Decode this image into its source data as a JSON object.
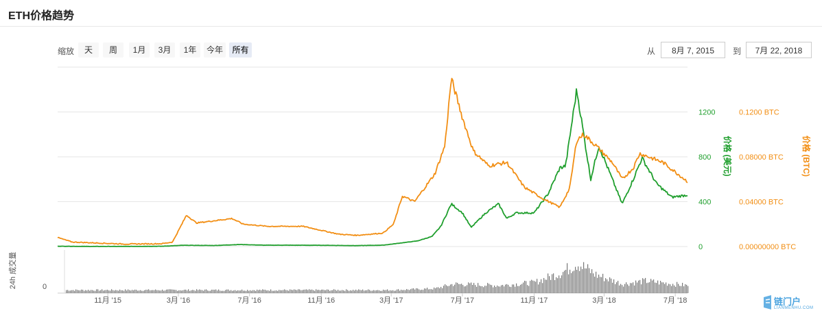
{
  "header": {
    "title": "ETH价格趋势"
  },
  "toolbar": {
    "zoom_label": "缩放",
    "zoom_buttons": [
      "天",
      "周",
      "1月",
      "3月",
      "1年",
      "今年",
      "所有"
    ],
    "active_zoom": "所有",
    "from_label": "从",
    "from_value": "8月 7, 2015",
    "to_label": "到",
    "to_value": "7月 22, 2018"
  },
  "watermark": {
    "text": "链门户",
    "sub": "LIANMENHU.COM"
  },
  "colors": {
    "usd": "#1e9e2c",
    "btc": "#f28e13",
    "volume": "#777777",
    "grid": "#e6e6e6"
  },
  "chart_data": {
    "type": "line",
    "x_axis": {
      "ticks": [
        "11月 '15",
        "3月 '16",
        "7月 '16",
        "11月 '16",
        "3月 '17",
        "7月 '17",
        "11月 '17",
        "3月 '18",
        "7月 '18"
      ]
    },
    "y_axes": {
      "usd": {
        "label": "价格 (美元)",
        "ticks": [
          "0",
          "400",
          "800",
          "1200"
        ],
        "range": [
          0,
          1600
        ]
      },
      "btc": {
        "label": "价格 (BTC)",
        "ticks": [
          "0.00000000 BTC",
          "0.04000 BTC",
          "0.08000 BTC",
          "0.1200 BTC"
        ],
        "range": [
          0,
          0.16
        ]
      },
      "volume": {
        "label": "24h 成交量",
        "ticks": [
          "0"
        ]
      }
    },
    "series": [
      {
        "name": "价格 (美元)",
        "axis": "usd",
        "points": [
          [
            "2015-08-07",
            2.8
          ],
          [
            "2015-10-01",
            0.7
          ],
          [
            "2015-12-01",
            0.9
          ],
          [
            "2016-02-01",
            2.3
          ],
          [
            "2016-03-10",
            11
          ],
          [
            "2016-05-01",
            9
          ],
          [
            "2016-06-15",
            18
          ],
          [
            "2016-07-25",
            12
          ],
          [
            "2016-09-01",
            12
          ],
          [
            "2016-11-01",
            11
          ],
          [
            "2017-01-01",
            8
          ],
          [
            "2017-02-15",
            12
          ],
          [
            "2017-03-15",
            30
          ],
          [
            "2017-04-15",
            50
          ],
          [
            "2017-05-10",
            90
          ],
          [
            "2017-05-25",
            180
          ],
          [
            "2017-06-12",
            380
          ],
          [
            "2017-07-01",
            300
          ],
          [
            "2017-07-16",
            170
          ],
          [
            "2017-08-10",
            300
          ],
          [
            "2017-09-01",
            380
          ],
          [
            "2017-09-15",
            250
          ],
          [
            "2017-10-01",
            300
          ],
          [
            "2017-11-01",
            300
          ],
          [
            "2017-11-25",
            470
          ],
          [
            "2017-12-15",
            700
          ],
          [
            "2017-12-25",
            720
          ],
          [
            "2018-01-13",
            1400
          ],
          [
            "2018-02-06",
            600
          ],
          [
            "2018-02-20",
            900
          ],
          [
            "2018-03-15",
            600
          ],
          [
            "2018-04-01",
            380
          ],
          [
            "2018-04-20",
            600
          ],
          [
            "2018-05-05",
            790
          ],
          [
            "2018-05-30",
            560
          ],
          [
            "2018-06-25",
            440
          ],
          [
            "2018-07-22",
            460
          ]
        ]
      },
      {
        "name": "价格 (BTC)",
        "axis": "btc",
        "points": [
          [
            "2015-08-07",
            0.008
          ],
          [
            "2015-09-01",
            0.004
          ],
          [
            "2015-12-01",
            0.0022
          ],
          [
            "2016-02-01",
            0.0025
          ],
          [
            "2016-02-20",
            0.004
          ],
          [
            "2016-03-15",
            0.028
          ],
          [
            "2016-04-01",
            0.021
          ],
          [
            "2016-06-01",
            0.025
          ],
          [
            "2016-06-20",
            0.02
          ],
          [
            "2016-08-01",
            0.018
          ],
          [
            "2016-10-01",
            0.018
          ],
          [
            "2016-12-01",
            0.011
          ],
          [
            "2017-01-01",
            0.01
          ],
          [
            "2017-02-15",
            0.012
          ],
          [
            "2017-03-05",
            0.02
          ],
          [
            "2017-03-20",
            0.045
          ],
          [
            "2017-04-10",
            0.04
          ],
          [
            "2017-05-15",
            0.065
          ],
          [
            "2017-06-01",
            0.09
          ],
          [
            "2017-06-12",
            0.15
          ],
          [
            "2017-07-01",
            0.115
          ],
          [
            "2017-07-20",
            0.085
          ],
          [
            "2017-08-15",
            0.072
          ],
          [
            "2017-09-15",
            0.075
          ],
          [
            "2017-10-15",
            0.053
          ],
          [
            "2017-11-15",
            0.043
          ],
          [
            "2017-12-15",
            0.035
          ],
          [
            "2018-01-01",
            0.052
          ],
          [
            "2018-01-13",
            0.095
          ],
          [
            "2018-01-25",
            0.1
          ],
          [
            "2018-02-15",
            0.09
          ],
          [
            "2018-03-15",
            0.075
          ],
          [
            "2018-04-01",
            0.06
          ],
          [
            "2018-04-20",
            0.07
          ],
          [
            "2018-05-01",
            0.083
          ],
          [
            "2018-06-10",
            0.075
          ],
          [
            "2018-07-22",
            0.058
          ]
        ]
      }
    ],
    "volume_profile": [
      [
        "2015-08-07",
        0.1
      ],
      [
        "2017-03-01",
        0.1
      ],
      [
        "2017-05-15",
        0.15
      ],
      [
        "2017-06-15",
        0.3
      ],
      [
        "2017-09-01",
        0.25
      ],
      [
        "2017-11-01",
        0.35
      ],
      [
        "2017-12-20",
        0.7
      ],
      [
        "2018-01-13",
        1.0
      ],
      [
        "2018-02-15",
        0.6
      ],
      [
        "2018-04-01",
        0.3
      ],
      [
        "2018-05-10",
        0.4
      ],
      [
        "2018-07-22",
        0.25
      ]
    ]
  }
}
